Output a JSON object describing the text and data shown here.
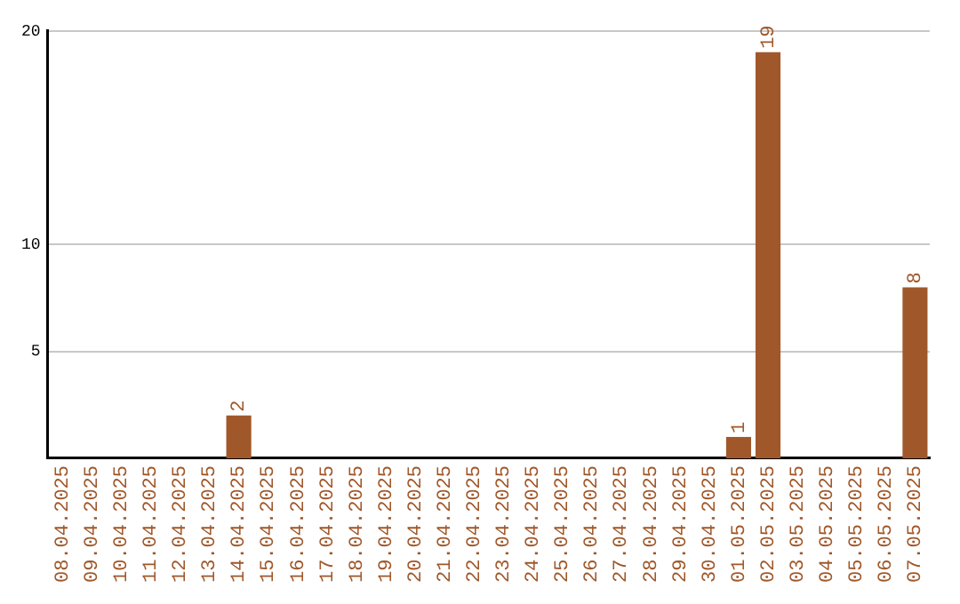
{
  "chart_data": {
    "type": "bar",
    "categories": [
      "08.04.2025",
      "09.04.2025",
      "10.04.2025",
      "11.04.2025",
      "12.04.2025",
      "13.04.2025",
      "14.04.2025",
      "15.04.2025",
      "16.04.2025",
      "17.04.2025",
      "18.04.2025",
      "19.04.2025",
      "20.04.2025",
      "21.04.2025",
      "22.04.2025",
      "23.04.2025",
      "24.04.2025",
      "25.04.2025",
      "26.04.2025",
      "27.04.2025",
      "28.04.2025",
      "29.04.2025",
      "30.04.2025",
      "01.05.2025",
      "02.05.2025",
      "03.05.2025",
      "04.05.2025",
      "05.05.2025",
      "06.05.2025",
      "07.05.2025"
    ],
    "values": [
      0,
      0,
      0,
      0,
      0,
      0,
      2,
      0,
      0,
      0,
      0,
      0,
      0,
      0,
      0,
      0,
      0,
      0,
      0,
      0,
      0,
      0,
      0,
      1,
      19,
      0,
      0,
      0,
      0,
      8
    ],
    "value_labels": [
      null,
      null,
      null,
      null,
      null,
      null,
      "2",
      null,
      null,
      null,
      null,
      null,
      null,
      null,
      null,
      null,
      null,
      null,
      null,
      null,
      null,
      null,
      null,
      "1",
      "19",
      null,
      null,
      null,
      null,
      "8"
    ],
    "color": "#a0582a",
    "ylim": [
      0,
      20
    ],
    "yticks": [
      5,
      10,
      20
    ],
    "grid": "y",
    "legend": false
  }
}
